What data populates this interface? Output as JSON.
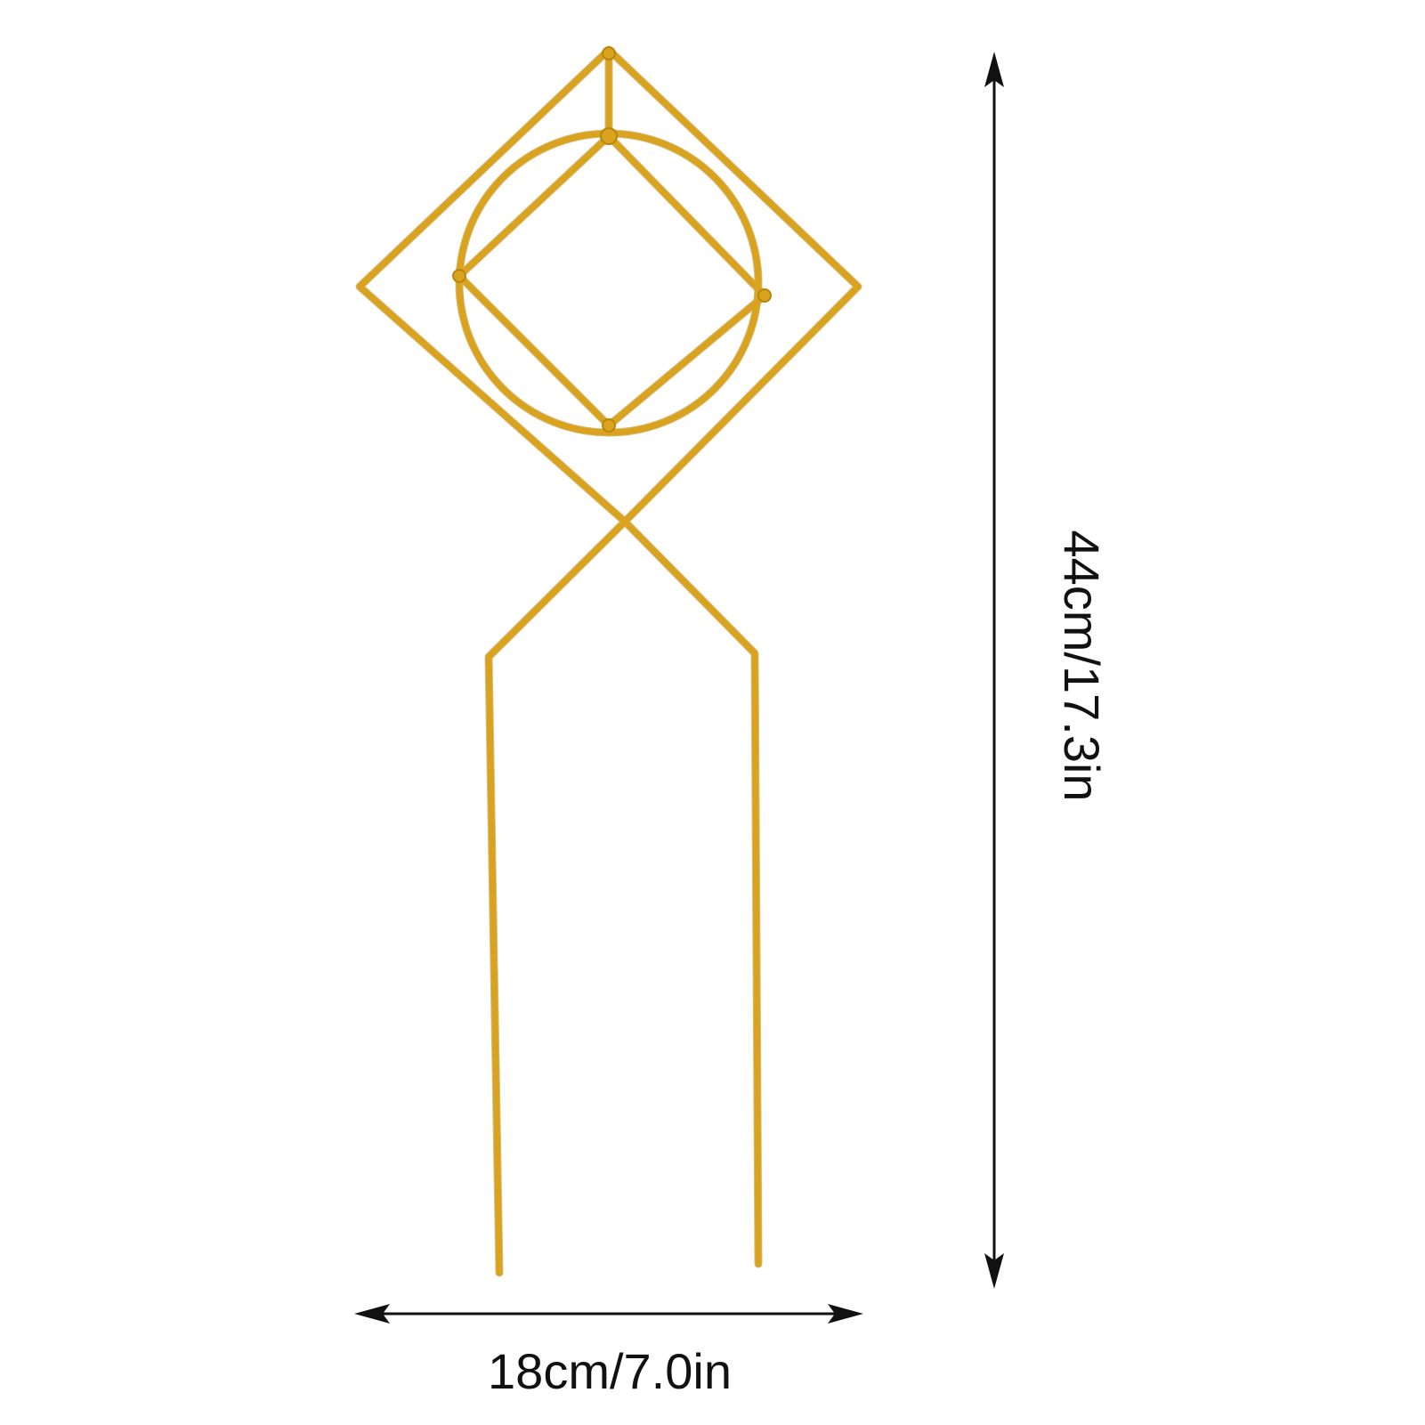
{
  "product": {
    "name_icon": "geometric-plant-support-stake-icon",
    "wire_color": "#D9A21F",
    "wire_shadow_color": "#B8860B"
  },
  "dimensions": {
    "width_label": "18cm/7.0in",
    "height_label": "44cm/17.3in",
    "arrow_color": "#111111"
  }
}
